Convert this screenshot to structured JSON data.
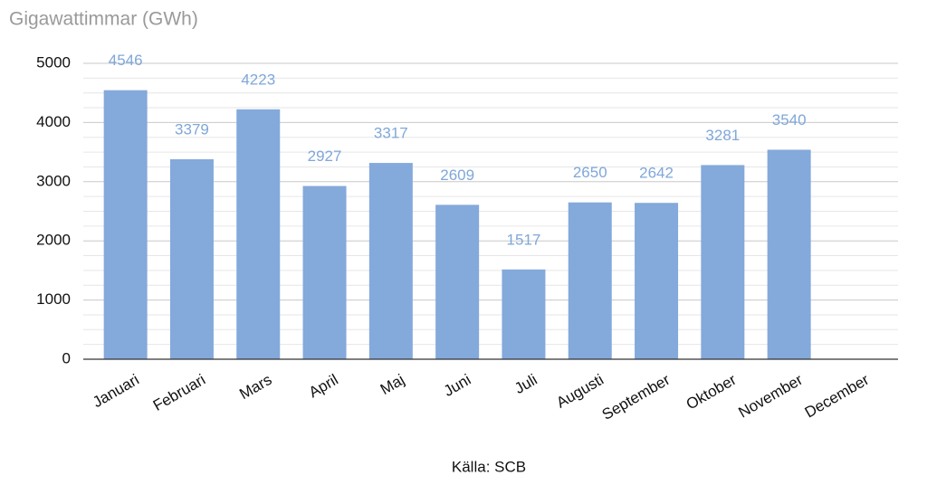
{
  "chart_data": {
    "type": "bar",
    "title": "Gigawattimmar (GWh)",
    "source": "Källa: SCB",
    "categories": [
      "Januari",
      "Februari",
      "Mars",
      "April",
      "Maj",
      "Juni",
      "Juli",
      "Augusti",
      "September",
      "Oktober",
      "November",
      "December"
    ],
    "values": [
      4546,
      3379,
      4223,
      2927,
      3317,
      2609,
      1517,
      2650,
      2642,
      3281,
      3540,
      null
    ],
    "color": "#84a9db",
    "ylim": [
      0,
      5000
    ],
    "yticks": [
      0,
      1000,
      2000,
      3000,
      4000,
      5000
    ],
    "grid": true
  }
}
